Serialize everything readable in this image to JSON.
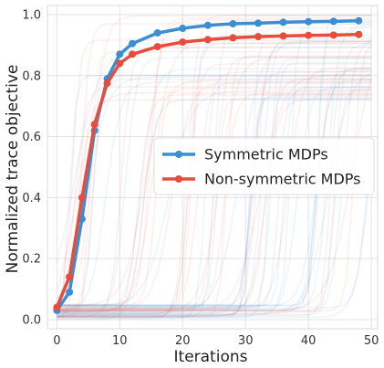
{
  "chart_data": {
    "type": "line",
    "xlabel": "Iterations",
    "ylabel": "Normalized trace objective",
    "xlim": [
      -1.5,
      51
    ],
    "ylim": [
      -0.03,
      1.03
    ],
    "xticks": [
      0,
      10,
      20,
      30,
      40,
      50
    ],
    "yticks": [
      0.0,
      0.2,
      0.4,
      0.6,
      0.8,
      1.0
    ],
    "xtick_labels": [
      "0",
      "10",
      "20",
      "30",
      "40",
      "50"
    ],
    "ytick_labels": [
      "0.0",
      "0.2",
      "0.4",
      "0.6",
      "0.8",
      "1.0"
    ],
    "grid": true,
    "legend_position": "center-right",
    "series": [
      {
        "name": "Symmetric MDPs",
        "color": "#3a8fd4",
        "x": [
          0,
          2,
          4,
          6,
          8,
          10,
          12,
          16,
          20,
          24,
          28,
          32,
          36,
          40,
          44,
          48
        ],
        "y": [
          0.03,
          0.09,
          0.33,
          0.62,
          0.79,
          0.87,
          0.905,
          0.94,
          0.955,
          0.965,
          0.97,
          0.972,
          0.975,
          0.977,
          0.978,
          0.98
        ]
      },
      {
        "name": "Non-symmetric MDPs",
        "color": "#e74c3c",
        "x": [
          0,
          2,
          4,
          6,
          8,
          10,
          12,
          16,
          20,
          24,
          28,
          32,
          36,
          40,
          44,
          48
        ],
        "y": [
          0.04,
          0.14,
          0.4,
          0.64,
          0.775,
          0.84,
          0.87,
          0.895,
          0.91,
          0.918,
          0.924,
          0.928,
          0.93,
          0.932,
          0.933,
          0.935
        ]
      }
    ]
  }
}
